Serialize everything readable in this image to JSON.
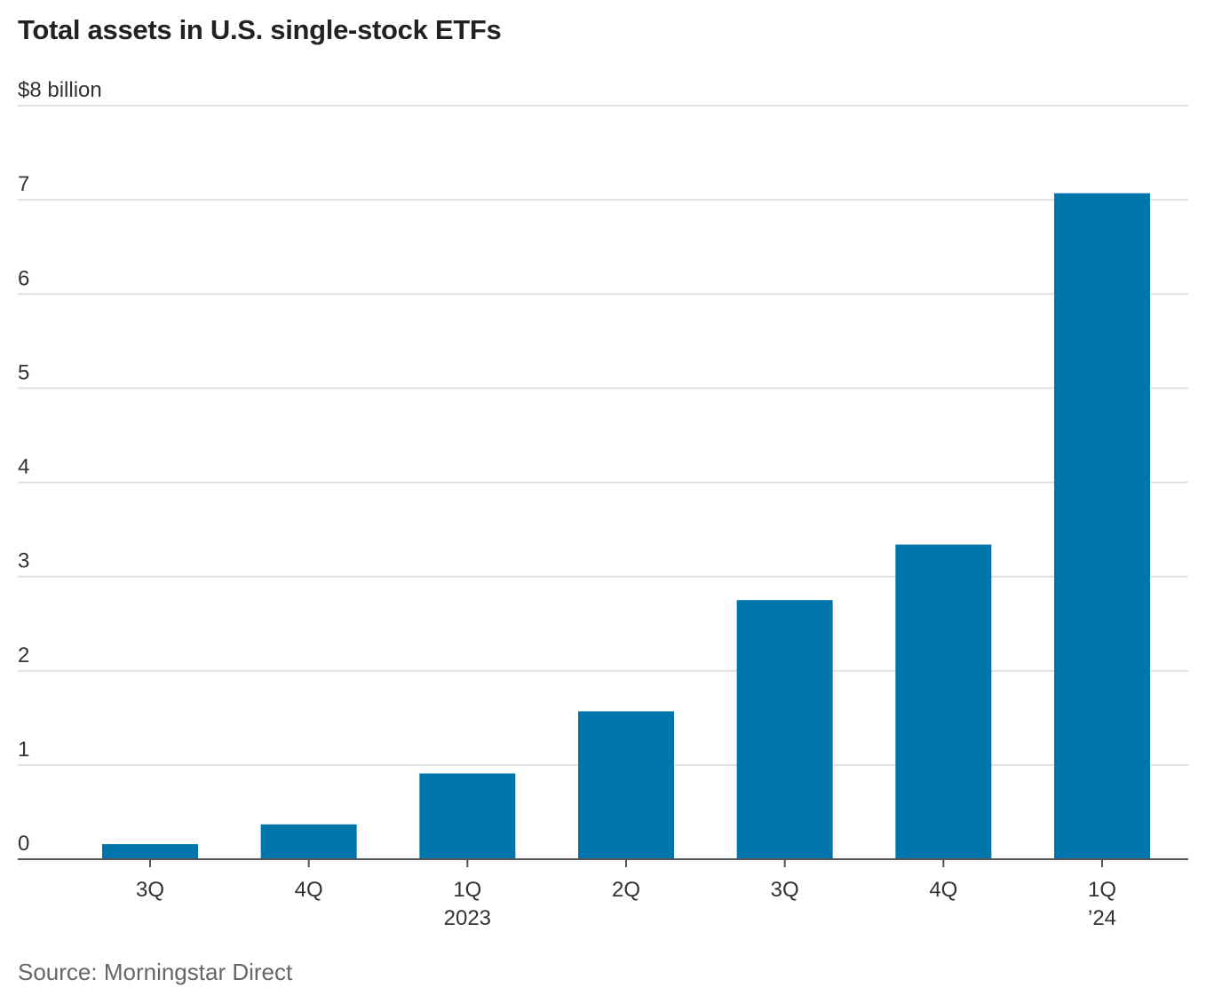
{
  "chart_data": {
    "type": "bar",
    "title": "Total assets in U.S. single-stock ETFs",
    "source": "Source: Morningstar Direct",
    "categories": [
      "3Q",
      "4Q",
      "1Q",
      "2Q",
      "3Q",
      "4Q",
      "1Q"
    ],
    "category_sublabels": [
      "",
      "",
      "2023",
      "",
      "",
      "",
      "’24"
    ],
    "values": [
      0.16,
      0.37,
      0.91,
      1.57,
      2.75,
      3.34,
      7.07
    ],
    "ylim": [
      0,
      8
    ],
    "yticks": [
      0,
      1,
      2,
      3,
      4,
      5,
      6,
      7,
      8
    ],
    "ytick_labels": [
      "0",
      "1",
      "2",
      "3",
      "4",
      "5",
      "6",
      "7",
      "$8 billion"
    ],
    "grid": true,
    "bar_color": "#0077ac"
  }
}
